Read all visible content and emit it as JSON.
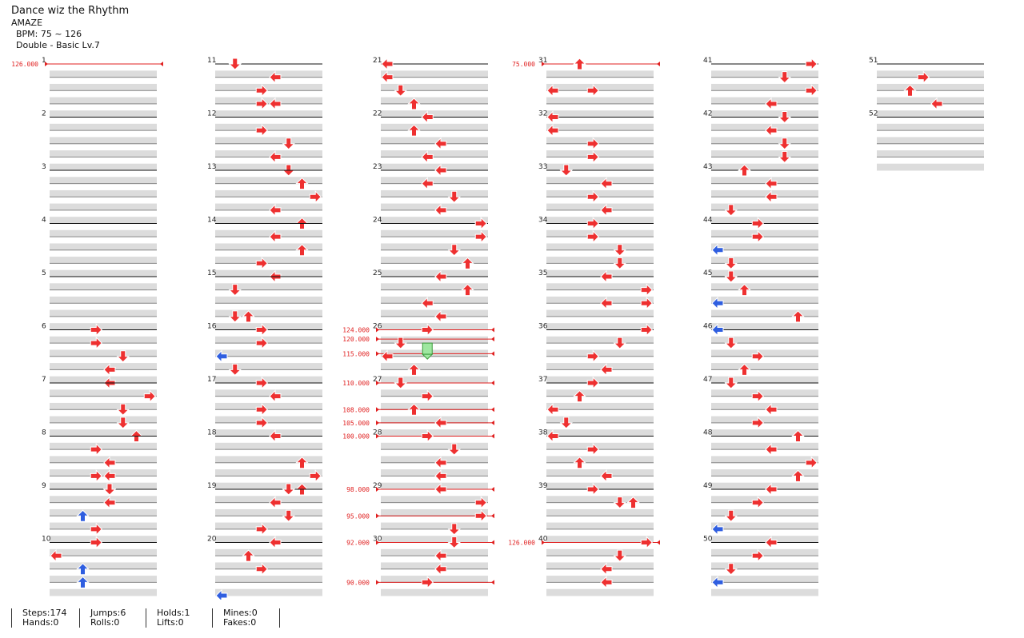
{
  "song": {
    "title": "Dance wiz the Rhythm",
    "artist": "AMAZE",
    "bpm_text": "BPM: 75 ~ 126",
    "difficulty_text": "Double - Basic Lv.7"
  },
  "colors": {
    "red_arrow": "#ee3030",
    "blue_arrow": "#2f5ee0",
    "yellow_arrow": "#f0d010",
    "hold_body": "#9ee7a0",
    "bpm_line": "#e02020",
    "band": "#dcdcdc"
  },
  "icons": {
    "arrow": "arrow-icon",
    "hold": "hold-icon",
    "bpm_marker": "bpm-marker-icon"
  },
  "chart": {
    "measures": [
      {
        "n": 1,
        "notes": [],
        "bpm": "126.000"
      },
      {
        "n": 2,
        "notes": []
      },
      {
        "n": 3,
        "notes": []
      },
      {
        "n": 4,
        "notes": []
      },
      {
        "n": 5,
        "notes": []
      },
      {
        "n": 6,
        "notes": [
          [
            0,
            "r",
            3
          ],
          [
            1,
            "r",
            3
          ],
          [
            2,
            "d",
            5
          ],
          [
            3,
            "l",
            4
          ],
          [
            4,
            "l",
            4
          ]
        ]
      },
      {
        "n": 7,
        "notes": [
          [
            1,
            "r",
            7
          ],
          [
            2,
            "d",
            5
          ],
          [
            3,
            "d",
            5
          ],
          [
            4,
            "u",
            6
          ]
        ]
      },
      {
        "n": 8,
        "notes": [
          [
            1,
            "r",
            3
          ],
          [
            2,
            "l",
            4
          ],
          [
            3,
            "r",
            3
          ],
          [
            3,
            "l",
            4
          ]
        ]
      },
      {
        "n": 9,
        "notes": [
          [
            0,
            "d",
            4
          ],
          [
            1,
            "l",
            4
          ],
          [
            2,
            "u",
            2
          ],
          [
            3,
            "r",
            3
          ]
        ]
      },
      {
        "n": 10,
        "notes": [
          [
            0,
            "r",
            3
          ],
          [
            1,
            "l",
            0
          ],
          [
            2,
            "u",
            2
          ],
          [
            3,
            "u",
            2
          ]
        ]
      },
      {
        "n": 11,
        "notes": [
          [
            0,
            "d",
            1
          ],
          [
            1,
            "l",
            4
          ],
          [
            2,
            "r",
            3
          ],
          [
            3,
            "r",
            3
          ],
          [
            3,
            "l",
            4
          ]
        ]
      },
      {
        "n": 12,
        "notes": [
          [
            1,
            "r",
            3
          ],
          [
            2,
            "d",
            5
          ],
          [
            3,
            "l",
            4
          ],
          [
            4,
            "d",
            5
          ]
        ]
      },
      {
        "n": 13,
        "notes": [
          [
            1,
            "u",
            6
          ],
          [
            2,
            "r",
            7
          ],
          [
            3,
            "l",
            4
          ],
          [
            4,
            "u",
            6
          ]
        ]
      },
      {
        "n": 14,
        "notes": [
          [
            1,
            "l",
            4
          ],
          [
            2,
            "u",
            6
          ],
          [
            3,
            "r",
            3
          ],
          [
            4,
            "l",
            4
          ]
        ]
      },
      {
        "n": 15,
        "notes": [
          [
            1,
            "d",
            1
          ],
          [
            3,
            "d",
            1
          ],
          [
            3,
            "u",
            2
          ]
        ]
      },
      {
        "n": 16,
        "notes": [
          [
            0,
            "r",
            3
          ],
          [
            1,
            "r",
            3
          ],
          [
            2,
            "l",
            0
          ],
          [
            3,
            "d",
            1
          ]
        ]
      },
      {
        "n": 17,
        "notes": [
          [
            0,
            "r",
            3
          ],
          [
            1,
            "l",
            4
          ],
          [
            2,
            "r",
            3
          ],
          [
            3,
            "r",
            3
          ]
        ]
      },
      {
        "n": 18,
        "notes": [
          [
            0,
            "l",
            4
          ],
          [
            2,
            "u",
            6
          ],
          [
            3,
            "r",
            7
          ],
          [
            4,
            "u",
            6
          ]
        ]
      },
      {
        "n": 19,
        "notes": [
          [
            0,
            "d",
            5
          ],
          [
            1,
            "l",
            4
          ],
          [
            2,
            "d",
            5
          ],
          [
            3,
            "r",
            3
          ]
        ]
      },
      {
        "n": 20,
        "notes": [
          [
            0,
            "l",
            4
          ],
          [
            1,
            "u",
            2
          ],
          [
            2,
            "r",
            3
          ],
          [
            4,
            "l",
            0
          ]
        ]
      },
      {
        "n": 21,
        "notes": [
          [
            0,
            "l",
            0
          ],
          [
            1,
            "l",
            0
          ],
          [
            2,
            "d",
            1
          ],
          [
            3,
            "u",
            2
          ]
        ]
      },
      {
        "n": 22,
        "notes": [
          [
            0,
            "l",
            3
          ],
          [
            1,
            "u",
            2
          ],
          [
            2,
            "l",
            4
          ],
          [
            3,
            "l",
            3
          ]
        ]
      },
      {
        "n": 23,
        "notes": [
          [
            0,
            "l",
            4
          ],
          [
            1,
            "l",
            3
          ],
          [
            2,
            "d",
            5
          ],
          [
            3,
            "l",
            4
          ]
        ]
      },
      {
        "n": 24,
        "notes": [
          [
            0,
            "r",
            7
          ],
          [
            0,
            "r",
            7
          ],
          [
            1,
            "r",
            7
          ],
          [
            2,
            "d",
            5
          ],
          [
            3,
            "u",
            6
          ]
        ]
      },
      {
        "n": 25,
        "notes": [
          [
            0,
            "l",
            4
          ],
          [
            1,
            "u",
            6
          ],
          [
            2,
            "l",
            3
          ],
          [
            3,
            "l",
            4
          ]
        ]
      },
      {
        "n": 26,
        "notes": [
          [
            0,
            "r",
            3
          ],
          [
            1,
            "d",
            1
          ],
          [
            2,
            "l",
            0
          ],
          [
            3,
            "u",
            2
          ]
        ],
        "bpm": "124.000",
        "bpm_quarters": [
          [
            0.7,
            "120.000"
          ],
          [
            1.8,
            "115.000"
          ]
        ]
      },
      {
        "n": 27,
        "notes": [
          [
            0,
            "d",
            1
          ],
          [
            1,
            "r",
            3
          ],
          [
            2,
            "u",
            2
          ],
          [
            3,
            "l",
            4
          ]
        ],
        "bpm": "110.000",
        "bpm_quarters": [
          [
            2,
            "108.000"
          ],
          [
            3,
            "105.000"
          ]
        ]
      },
      {
        "n": 28,
        "notes": [
          [
            0,
            "r",
            3
          ],
          [
            1,
            "d",
            5
          ],
          [
            2,
            "l",
            4
          ],
          [
            3,
            "l",
            4
          ]
        ],
        "bpm": "100.000"
      },
      {
        "n": 29,
        "notes": [
          [
            0,
            "l",
            4
          ],
          [
            1,
            "r",
            7
          ],
          [
            2,
            "r",
            7
          ],
          [
            3,
            "d",
            5
          ]
        ],
        "bpm": "98.000",
        "bpm_quarters": [
          [
            2,
            "95.000"
          ]
        ]
      },
      {
        "n": 30,
        "notes": [
          [
            0,
            "d",
            5
          ],
          [
            1,
            "l",
            4
          ],
          [
            2,
            "l",
            4
          ],
          [
            3,
            "r",
            3
          ]
        ],
        "bpm": "92.000",
        "bpm_quarters": [
          [
            3,
            "90.000"
          ]
        ]
      },
      {
        "n": 31,
        "notes": [
          [
            0,
            "u",
            2
          ],
          [
            2,
            "l",
            0
          ],
          [
            2,
            "r",
            3
          ]
        ],
        "bpm": "75.000"
      },
      {
        "n": 32,
        "notes": [
          [
            0,
            "l",
            0
          ],
          [
            1,
            "l",
            0
          ],
          [
            2,
            "r",
            3
          ],
          [
            3,
            "r",
            3
          ]
        ]
      },
      {
        "n": 33,
        "notes": [
          [
            0,
            "d",
            1
          ],
          [
            1,
            "l",
            4
          ],
          [
            2,
            "r",
            3
          ],
          [
            3,
            "l",
            4
          ]
        ]
      },
      {
        "n": 34,
        "notes": [
          [
            0,
            "r",
            3
          ],
          [
            1,
            "r",
            3
          ],
          [
            2,
            "d",
            5
          ],
          [
            3,
            "d",
            5
          ]
        ]
      },
      {
        "n": 35,
        "notes": [
          [
            0,
            "l",
            4
          ],
          [
            1,
            "r",
            7
          ],
          [
            2,
            "l",
            4
          ],
          [
            2,
            "r",
            7
          ]
        ]
      },
      {
        "n": 36,
        "notes": [
          [
            0,
            "r",
            7
          ],
          [
            1,
            "d",
            5
          ],
          [
            2,
            "r",
            3
          ],
          [
            3,
            "l",
            4
          ]
        ]
      },
      {
        "n": 37,
        "notes": [
          [
            0,
            "r",
            3
          ],
          [
            1,
            "u",
            2
          ],
          [
            2,
            "l",
            0
          ],
          [
            3,
            "d",
            1
          ]
        ]
      },
      {
        "n": 38,
        "notes": [
          [
            0,
            "l",
            0
          ],
          [
            1,
            "r",
            3
          ],
          [
            2,
            "u",
            2
          ],
          [
            3,
            "l",
            4
          ]
        ]
      },
      {
        "n": 39,
        "notes": [
          [
            0,
            "r",
            3
          ],
          [
            1,
            "u",
            6
          ],
          [
            1,
            "d",
            5
          ],
          [
            1,
            "u",
            6
          ]
        ]
      },
      {
        "n": 40,
        "notes": [
          [
            0,
            "r",
            7
          ],
          [
            1,
            "d",
            5
          ],
          [
            2,
            "l",
            4
          ],
          [
            3,
            "l",
            4
          ]
        ],
        "bpm": "126.000"
      },
      {
        "n": 41,
        "notes": [
          [
            0,
            "r",
            7
          ],
          [
            1,
            "d",
            5
          ],
          [
            2,
            "r",
            7
          ],
          [
            3,
            "l",
            4
          ]
        ]
      },
      {
        "n": 42,
        "notes": [
          [
            0,
            "d",
            5
          ],
          [
            1,
            "l",
            4
          ],
          [
            2,
            "d",
            5
          ],
          [
            3,
            "d",
            5
          ]
        ]
      },
      {
        "n": 43,
        "notes": [
          [
            0,
            "u",
            2
          ],
          [
            1,
            "l",
            4
          ],
          [
            2,
            "l",
            4
          ],
          [
            3,
            "d",
            1
          ]
        ]
      },
      {
        "n": 44,
        "notes": [
          [
            0,
            "r",
            3
          ],
          [
            1,
            "r",
            3
          ],
          [
            2,
            "l",
            0
          ],
          [
            3,
            "d",
            1
          ]
        ]
      },
      {
        "n": 45,
        "notes": [
          [
            0,
            "d",
            1
          ],
          [
            1,
            "u",
            2
          ],
          [
            2,
            "l",
            0
          ],
          [
            3,
            "u",
            6
          ]
        ]
      },
      {
        "n": 46,
        "notes": [
          [
            0,
            "l",
            0
          ],
          [
            1,
            "d",
            1
          ],
          [
            2,
            "r",
            3
          ],
          [
            3,
            "u",
            2
          ]
        ]
      },
      {
        "n": 47,
        "notes": [
          [
            0,
            "d",
            1
          ],
          [
            1,
            "r",
            3
          ],
          [
            2,
            "l",
            4
          ],
          [
            3,
            "r",
            3
          ]
        ]
      },
      {
        "n": 48,
        "notes": [
          [
            0,
            "u",
            6
          ],
          [
            1,
            "l",
            4
          ],
          [
            2,
            "r",
            7
          ],
          [
            3,
            "u",
            6
          ]
        ]
      },
      {
        "n": 49,
        "notes": [
          [
            0,
            "l",
            4
          ],
          [
            1,
            "r",
            3
          ],
          [
            2,
            "d",
            1
          ],
          [
            3,
            "l",
            0
          ]
        ]
      },
      {
        "n": 50,
        "notes": [
          [
            0,
            "l",
            4
          ],
          [
            1,
            "r",
            3
          ],
          [
            2,
            "d",
            1
          ],
          [
            3,
            "l",
            0
          ]
        ]
      },
      {
        "n": 51,
        "notes": [
          [
            1,
            "r",
            3
          ],
          [
            2,
            "u",
            2
          ],
          [
            3,
            "l",
            4
          ]
        ]
      },
      {
        "n": 52,
        "notes": []
      }
    ]
  },
  "stats": [
    {
      "line1": "Steps:174",
      "line2": "Hands:0"
    },
    {
      "line1": "Jumps:6",
      "line2": "Rolls:0"
    },
    {
      "line1": "Holds:1",
      "line2": "Lifts:0"
    },
    {
      "line1": "Mines:0",
      "line2": "Fakes:0"
    }
  ]
}
